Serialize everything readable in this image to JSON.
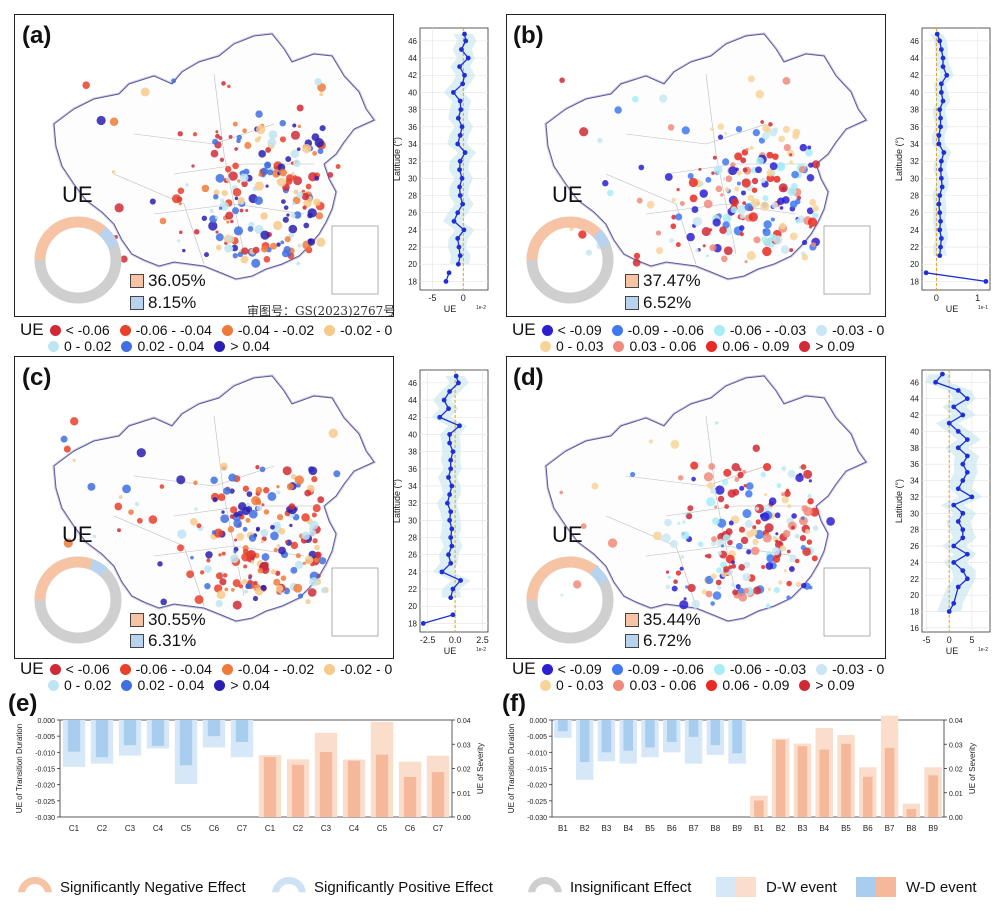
{
  "panels": {
    "a": {
      "label": "(a)",
      "ue_text": "UE",
      "pct_neg": "36.05%",
      "pct_pos": "8.15%",
      "donut": {
        "negative": 0.3605,
        "positive": 0.0815
      },
      "credit": "审图号：GS(2023)2767号"
    },
    "b": {
      "label": "(b)",
      "ue_text": "UE",
      "pct_neg": "37.47%",
      "pct_pos": "6.52%",
      "donut": {
        "negative": 0.3747,
        "positive": 0.0652
      }
    },
    "c": {
      "label": "(c)",
      "ue_text": "UE",
      "pct_neg": "30.55%",
      "pct_pos": "6.31%",
      "donut": {
        "negative": 0.3055,
        "positive": 0.0631
      }
    },
    "d": {
      "label": "(d)",
      "ue_text": "UE",
      "pct_neg": "35.44%",
      "pct_pos": "6.72%",
      "donut": {
        "negative": 0.3544,
        "positive": 0.0672
      }
    },
    "e": {
      "label": "(e)"
    },
    "f": {
      "label": "(f)"
    }
  },
  "map_legend_1": {
    "title": "UE",
    "items": [
      {
        "label": "< -0.06",
        "color": "#d12a36"
      },
      {
        "label": "-0.06 - -0.04",
        "color": "#e8402a"
      },
      {
        "label": "-0.04 - -0.02",
        "color": "#f07a3a"
      },
      {
        "label": "-0.02 - 0",
        "color": "#f7c98a"
      },
      {
        "label": "0 - 0.02",
        "color": "#bfe4f2"
      },
      {
        "label": "0.02 - 0.04",
        "color": "#3f6fe0"
      },
      {
        "label": "> 0.04",
        "color": "#2a1fb0"
      }
    ]
  },
  "map_legend_2": {
    "title": "UE",
    "items": [
      {
        "label": "< -0.09",
        "color": "#2c1fd0"
      },
      {
        "label": "-0.09 - -0.06",
        "color": "#3f78f0"
      },
      {
        "label": "-0.06 - -0.03",
        "color": "#a9ecf6"
      },
      {
        "label": "-0.03 - 0",
        "color": "#c9e6f2"
      },
      {
        "label": "0 - 0.03",
        "color": "#f7d49a"
      },
      {
        "label": "0.03 - 0.06",
        "color": "#f08a7a"
      },
      {
        "label": "0.06 - 0.09",
        "color": "#e82a22"
      },
      {
        "label": "> 0.09",
        "color": "#d02a36"
      }
    ]
  },
  "bottom_legend": {
    "neg": "Significantly Negative Effect",
    "pos": "Significantly Positive Effect",
    "ins": "Insignificant Effect",
    "dw": "D-W event",
    "wd": "W-D event"
  },
  "colors": {
    "negative": "#f6c4a4",
    "positive": "#b9d3ef",
    "insignificant": "#cfcfcf",
    "line": "#1f2fd6",
    "band": "#cde8f0",
    "dashed": "#e6a020",
    "bar_blue_dark": "#a8cdef",
    "bar_blue_light": "#d6e8f8",
    "bar_orange_dark": "#f6b89a",
    "bar_orange_light": "#fbddcc"
  },
  "chart_data": [
    {
      "panel": "a",
      "type": "line",
      "ylabel": "Latitude (°)",
      "xlabel": "UE",
      "x_multiplier": "1e-2",
      "ylim": [
        17,
        47.5
      ],
      "xlim": [
        -7,
        4
      ],
      "yticks": [
        18,
        20,
        22,
        24,
        26,
        28,
        30,
        32,
        34,
        36,
        38,
        40,
        42,
        44,
        46
      ],
      "xticks": [
        -5,
        0
      ],
      "xtick_labels": [
        "-5",
        "0"
      ],
      "points": [
        [
          0.2,
          46.8
        ],
        [
          0.4,
          46
        ],
        [
          -0.3,
          45
        ],
        [
          0.8,
          44
        ],
        [
          -0.6,
          43
        ],
        [
          0.2,
          42
        ],
        [
          -0.1,
          41
        ],
        [
          -1.6,
          40
        ],
        [
          -0.5,
          39
        ],
        [
          -0.4,
          38
        ],
        [
          -0.8,
          37
        ],
        [
          -0.2,
          36
        ],
        [
          -0.5,
          35
        ],
        [
          -0.9,
          34
        ],
        [
          0.3,
          33
        ],
        [
          -0.5,
          32
        ],
        [
          -0.6,
          31
        ],
        [
          -0.2,
          30
        ],
        [
          -0.6,
          29
        ],
        [
          -0.5,
          28
        ],
        [
          -0.1,
          27
        ],
        [
          -0.9,
          26
        ],
        [
          -1.5,
          25
        ],
        [
          0.1,
          24
        ],
        [
          -0.9,
          23
        ],
        [
          -0.7,
          22
        ],
        [
          -0.5,
          21
        ],
        [
          -0.8,
          20
        ]
      ],
      "extra_points": [
        [
          -2.3,
          19
        ],
        [
          -2.8,
          18
        ]
      ],
      "band_halfwidth": 1.8
    },
    {
      "panel": "b",
      "type": "line",
      "ylabel": "Latitude (°)",
      "xlabel": "UE",
      "x_multiplier": "1e-1",
      "ylim": [
        17,
        47.5
      ],
      "xlim": [
        -0.35,
        1.3
      ],
      "yticks": [
        18,
        20,
        22,
        24,
        26,
        28,
        30,
        32,
        34,
        36,
        38,
        40,
        42,
        44,
        46
      ],
      "xticks": [
        0,
        1
      ],
      "xtick_labels": [
        "0",
        "1"
      ],
      "points": [
        [
          0.02,
          46.8
        ],
        [
          0.08,
          46
        ],
        [
          0.12,
          45
        ],
        [
          0.16,
          44
        ],
        [
          0.16,
          43
        ],
        [
          0.25,
          42
        ],
        [
          0.12,
          41
        ],
        [
          0.12,
          40
        ],
        [
          0.16,
          39
        ],
        [
          0.08,
          38
        ],
        [
          0.1,
          37
        ],
        [
          0.1,
          36
        ],
        [
          0.06,
          35
        ],
        [
          0.06,
          34
        ],
        [
          0.18,
          33
        ],
        [
          0.12,
          32
        ],
        [
          0.1,
          31
        ],
        [
          0.12,
          30
        ],
        [
          0.14,
          29
        ],
        [
          0.08,
          28
        ],
        [
          0.06,
          27
        ],
        [
          0.08,
          26
        ],
        [
          0.1,
          25
        ],
        [
          0.08,
          24
        ],
        [
          0.12,
          23
        ],
        [
          0.1,
          22
        ],
        [
          0.08,
          21
        ]
      ],
      "extra_points": [
        [
          -0.25,
          19
        ],
        [
          1.2,
          18
        ]
      ],
      "band_halfwidth": 0.18
    },
    {
      "panel": "c",
      "type": "line",
      "ylabel": "Latitude (°)",
      "xlabel": "UE",
      "x_multiplier": "1e-2",
      "ylim": [
        17,
        47.5
      ],
      "xlim": [
        -3.2,
        3.0
      ],
      "yticks": [
        18,
        20,
        22,
        24,
        26,
        28,
        30,
        32,
        34,
        36,
        38,
        40,
        42,
        44,
        46
      ],
      "xticks": [
        -2.5,
        0,
        2.5
      ],
      "xtick_labels": [
        "-2.5",
        "0.0",
        "2.5"
      ],
      "points": [
        [
          0.1,
          46.8
        ],
        [
          0.3,
          46
        ],
        [
          -0.5,
          45
        ],
        [
          -1.0,
          44
        ],
        [
          -0.6,
          43
        ],
        [
          -1.4,
          42
        ],
        [
          0.4,
          41
        ],
        [
          -0.5,
          40
        ],
        [
          -0.5,
          39
        ],
        [
          -0.2,
          38
        ],
        [
          -0.4,
          37
        ],
        [
          -0.4,
          36
        ],
        [
          -0.6,
          35
        ],
        [
          -0.3,
          34
        ],
        [
          -0.5,
          33
        ],
        [
          -0.7,
          32
        ],
        [
          -0.4,
          31
        ],
        [
          -0.5,
          30
        ],
        [
          -0.3,
          29
        ],
        [
          -0.4,
          28
        ],
        [
          -0.3,
          27
        ],
        [
          -0.6,
          26
        ],
        [
          -0.4,
          25
        ],
        [
          -1.2,
          24
        ],
        [
          0.5,
          23
        ],
        [
          -0.2,
          22
        ],
        [
          -0.4,
          21
        ]
      ],
      "extra_points": [
        [
          -0.2,
          19
        ],
        [
          -2.9,
          18
        ]
      ],
      "band_halfwidth": 1.0
    },
    {
      "panel": "d",
      "type": "line",
      "ylabel": "Latitude (°)",
      "xlabel": "UE",
      "x_multiplier": "1e-2",
      "ylim": [
        15.5,
        47.5
      ],
      "xlim": [
        -6,
        9
      ],
      "yticks": [
        16,
        18,
        20,
        22,
        24,
        26,
        28,
        30,
        32,
        34,
        36,
        38,
        40,
        42,
        44,
        46
      ],
      "xticks": [
        -5,
        0,
        5
      ],
      "xtick_labels": [
        "-5",
        "0",
        "5"
      ],
      "points": [
        [
          -1.5,
          47
        ],
        [
          -3,
          46
        ],
        [
          2,
          45
        ],
        [
          4,
          44
        ],
        [
          1,
          43
        ],
        [
          3,
          42
        ],
        [
          0,
          41
        ],
        [
          2,
          40
        ],
        [
          4,
          39
        ],
        [
          2,
          38
        ],
        [
          4,
          37
        ],
        [
          3,
          36
        ],
        [
          4,
          35
        ],
        [
          3,
          34
        ],
        [
          2,
          33
        ],
        [
          5,
          32
        ],
        [
          1,
          31
        ],
        [
          3,
          30
        ],
        [
          2,
          29
        ],
        [
          3,
          28
        ],
        [
          3,
          27
        ],
        [
          1,
          26
        ],
        [
          4,
          25
        ],
        [
          1,
          24
        ],
        [
          3,
          23
        ],
        [
          4,
          22
        ],
        [
          2,
          21
        ],
        [
          1,
          19
        ],
        [
          0,
          18
        ]
      ],
      "extra_points": [],
      "band_halfwidth": 3.0
    },
    {
      "panel": "e",
      "type": "bar",
      "categories": [
        "C1",
        "C2",
        "C3",
        "C4",
        "C5",
        "C6",
        "C7",
        "C1",
        "C2",
        "C3",
        "C4",
        "C5",
        "C6",
        "C7"
      ],
      "ylabel": "UE of Transition Duration",
      "ylabel_right": "UE of Severity",
      "ylim": [
        -0.03,
        0.0
      ],
      "ylim_right": [
        0.0,
        0.04
      ],
      "yticks": [
        0.0,
        -0.005,
        -0.01,
        -0.015,
        -0.02,
        -0.025,
        -0.03
      ],
      "ytick_labels": [
        "0.000",
        "-0.005",
        "-0.010",
        "-0.015",
        "-0.020",
        "-0.025",
        "-0.030"
      ],
      "yticks_right": [
        0.0,
        0.01,
        0.02,
        0.03,
        0.04
      ],
      "ytick_labels_right": [
        "0.00",
        "0.01",
        "0.02",
        "0.03",
        "0.04"
      ],
      "duration_dw": [
        -0.0145,
        -0.0135,
        -0.011,
        -0.0088,
        -0.0198,
        -0.0085,
        -0.0115
      ],
      "duration_wd": [
        -0.0098,
        -0.0115,
        -0.0078,
        -0.008,
        -0.014,
        -0.005,
        -0.0068
      ],
      "severity_dw": [
        0.0255,
        0.0238,
        0.0347,
        0.0237,
        0.0392,
        0.0228,
        0.0253
      ],
      "severity_wd": [
        0.0247,
        0.0215,
        0.0268,
        0.0232,
        0.0257,
        0.0165,
        0.0185
      ]
    },
    {
      "panel": "f",
      "type": "bar",
      "categories": [
        "B1",
        "B2",
        "B3",
        "B4",
        "B5",
        "B6",
        "B7",
        "B8",
        "B9",
        "B1",
        "B2",
        "B3",
        "B4",
        "B5",
        "B6",
        "B7",
        "B8",
        "B9"
      ],
      "ylabel": "UE of Transition Duration",
      "ylabel_right": "UE of Severity",
      "ylim": [
        -0.03,
        0.0
      ],
      "ylim_right": [
        0.0,
        0.04
      ],
      "yticks": [
        0.0,
        -0.005,
        -0.01,
        -0.015,
        -0.02,
        -0.025,
        -0.03
      ],
      "ytick_labels": [
        "0.000",
        "-0.005",
        "-0.010",
        "-0.015",
        "-0.020",
        "-0.025",
        "-0.030"
      ],
      "yticks_right": [
        0.0,
        0.01,
        0.02,
        0.03,
        0.04
      ],
      "ytick_labels_right": [
        "0.00",
        "0.01",
        "0.02",
        "0.03",
        "0.04"
      ],
      "duration_dw": [
        -0.0055,
        -0.0185,
        -0.0128,
        -0.0135,
        -0.0115,
        -0.01,
        -0.0135,
        -0.0108,
        -0.0135
      ],
      "duration_wd": [
        -0.0035,
        -0.013,
        -0.01,
        -0.0095,
        -0.0085,
        -0.0068,
        -0.0052,
        -0.0078,
        -0.0103
      ],
      "severity_dw": [
        0.0088,
        0.0323,
        0.0303,
        0.0367,
        0.0338,
        0.0205,
        0.0418,
        0.0055,
        0.0205
      ],
      "severity_wd": [
        0.0068,
        0.0318,
        0.0292,
        0.0278,
        0.0302,
        0.0166,
        0.0285,
        0.0033,
        0.0172
      ]
    }
  ]
}
